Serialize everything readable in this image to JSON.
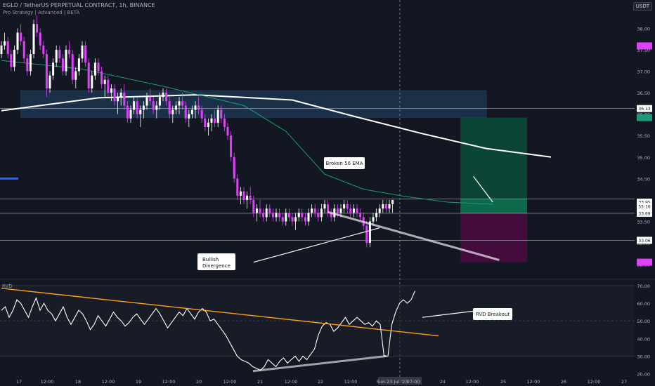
{
  "header": {
    "title": "EGLD / TetherUS PERPETUAL CONTRACT, 1h, BINANCE",
    "indicator": "Pro Strategy | Advanced | BETA"
  },
  "currency_badge": "USDT",
  "rvd_label": "RVD",
  "annotations": {
    "ema_break": "Broken 50 EMA",
    "divergence_line1": "Bullish",
    "divergence_line2": "Divergence",
    "rvd_breakout": "RVD Breakout"
  },
  "colors": {
    "background": "#131722",
    "bull_candle": "#ffffff",
    "bear_candle": "#e040fb",
    "ema_long": "#ffffff",
    "ema_50": "#1f9a78",
    "target_zone": "#0b4a38",
    "stop_zone": "#4a0a40",
    "supply_zone": "#1c3550",
    "trendline": "#ff9f1c",
    "oscillator": "#ffffff",
    "crosshair": "#9598a1"
  },
  "chart_data": [
    {
      "type": "candlestick",
      "title": "EGLD / TetherUS PERPETUAL CONTRACT, 1h, BINANCE",
      "y_ticks": [
        38.0,
        37.5,
        37.0,
        36.5,
        36.0,
        35.5,
        35.0,
        34.5,
        34.0,
        33.5,
        33.0,
        32.5
      ],
      "ylim": [
        32.2,
        38.3
      ],
      "x_ticks": [
        "17",
        "12:00",
        "18",
        "12:00",
        "19",
        "12:00",
        "20",
        "12:00",
        "21",
        "12:00",
        "22",
        "12:00",
        "Sun 23 Jul '23",
        "07:00",
        "24",
        "12:00",
        "25",
        "12:00",
        "26",
        "12:00",
        "27"
      ],
      "price_labels": [
        {
          "value": "37.59",
          "color": "#e040fb"
        },
        {
          "value": "36.13",
          "color": "#131722"
        },
        {
          "value": "35.92",
          "color": "#1f9a78"
        },
        {
          "value": "33.95",
          "color": "#131722"
        },
        {
          "value": "55:16",
          "color": "#131722"
        },
        {
          "value": "33.69",
          "color": "#131722"
        },
        {
          "value": "33.06",
          "color": "#131722"
        },
        {
          "value": "32.55",
          "color": "#e040fb"
        }
      ],
      "horizontal_levels": [
        36.13,
        34.02,
        33.06
      ],
      "supply_zone": {
        "top": 36.55,
        "bottom": 35.92,
        "start_index": 0,
        "end_index": 150
      },
      "trade_setup": {
        "entry": 33.69,
        "target": 35.92,
        "stop": 32.55,
        "start_index": 142,
        "end_index": 187
      },
      "ohlc": [
        [
          37.4,
          37.7,
          37.3,
          37.6
        ],
        [
          37.6,
          37.9,
          37.5,
          37.7
        ],
        [
          37.7,
          37.8,
          37.3,
          37.4
        ],
        [
          37.4,
          37.5,
          37.0,
          37.1
        ],
        [
          37.1,
          37.6,
          37.0,
          37.5
        ],
        [
          37.5,
          38.0,
          37.4,
          37.9
        ],
        [
          37.9,
          38.1,
          37.6,
          37.7
        ],
        [
          37.7,
          37.8,
          37.2,
          37.3
        ],
        [
          37.3,
          37.4,
          36.9,
          37.0
        ],
        [
          37.0,
          37.5,
          36.9,
          37.4
        ],
        [
          37.4,
          38.2,
          37.3,
          38.1
        ],
        [
          38.1,
          38.3,
          37.8,
          37.9
        ],
        [
          37.9,
          38.0,
          37.5,
          37.6
        ],
        [
          37.6,
          37.7,
          37.3,
          37.4
        ],
        [
          37.4,
          37.5,
          36.4,
          36.6
        ],
        [
          36.6,
          37.0,
          36.5,
          36.9
        ],
        [
          36.9,
          37.3,
          36.8,
          37.2
        ],
        [
          37.2,
          37.6,
          37.1,
          37.5
        ],
        [
          37.5,
          37.6,
          37.2,
          37.3
        ],
        [
          37.3,
          37.4,
          36.9,
          37.0
        ],
        [
          37.0,
          37.6,
          36.9,
          37.5
        ],
        [
          37.5,
          37.7,
          37.3,
          37.4
        ],
        [
          37.4,
          37.5,
          36.7,
          36.8
        ],
        [
          36.8,
          37.1,
          36.6,
          37.0
        ],
        [
          37.0,
          37.4,
          36.9,
          37.3
        ],
        [
          37.3,
          37.7,
          37.2,
          37.6
        ],
        [
          37.6,
          37.7,
          37.1,
          37.2
        ],
        [
          37.2,
          37.3,
          36.5,
          36.6
        ],
        [
          36.6,
          37.0,
          36.5,
          36.9
        ],
        [
          36.9,
          37.3,
          36.8,
          37.2
        ],
        [
          37.2,
          37.3,
          36.9,
          37.0
        ],
        [
          37.0,
          37.1,
          36.6,
          36.7
        ],
        [
          36.7,
          36.9,
          36.4,
          36.8
        ],
        [
          36.8,
          36.9,
          36.4,
          36.5
        ],
        [
          36.5,
          36.7,
          36.3,
          36.6
        ],
        [
          36.6,
          36.7,
          36.2,
          36.3
        ],
        [
          36.3,
          36.5,
          36.0,
          36.4
        ],
        [
          36.4,
          36.6,
          36.2,
          36.5
        ],
        [
          36.5,
          36.7,
          36.1,
          36.2
        ],
        [
          36.2,
          36.3,
          35.8,
          35.9
        ],
        [
          35.9,
          36.2,
          35.8,
          36.1
        ],
        [
          36.1,
          36.4,
          36.0,
          36.3
        ],
        [
          36.3,
          36.4,
          35.9,
          36.0
        ],
        [
          36.0,
          36.2,
          35.7,
          36.1
        ],
        [
          36.1,
          36.3,
          35.9,
          36.2
        ],
        [
          36.2,
          36.5,
          36.1,
          36.4
        ],
        [
          36.4,
          36.6,
          36.2,
          36.3
        ],
        [
          36.3,
          36.4,
          36.0,
          36.1
        ],
        [
          36.1,
          36.3,
          35.9,
          36.2
        ],
        [
          36.2,
          36.5,
          36.1,
          36.4
        ],
        [
          36.4,
          36.6,
          36.3,
          36.5
        ],
        [
          36.5,
          36.6,
          36.2,
          36.3
        ],
        [
          36.3,
          36.4,
          35.9,
          36.0
        ],
        [
          36.0,
          36.2,
          35.8,
          36.1
        ],
        [
          36.1,
          36.3,
          36.0,
          36.2
        ],
        [
          36.2,
          36.4,
          36.0,
          36.3
        ],
        [
          36.3,
          36.5,
          36.1,
          36.2
        ],
        [
          36.2,
          36.3,
          35.8,
          35.9
        ],
        [
          35.9,
          36.1,
          35.7,
          36.0
        ],
        [
          36.0,
          36.2,
          35.9,
          36.1
        ],
        [
          36.1,
          36.3,
          35.9,
          36.2
        ],
        [
          36.2,
          36.4,
          36.0,
          36.1
        ],
        [
          36.1,
          36.2,
          35.8,
          35.9
        ],
        [
          35.9,
          36.0,
          35.6,
          35.7
        ],
        [
          35.7,
          35.9,
          35.5,
          35.8
        ],
        [
          35.8,
          36.0,
          35.6,
          35.9
        ],
        [
          35.9,
          36.1,
          35.7,
          35.8
        ],
        [
          35.8,
          36.2,
          35.7,
          36.1
        ],
        [
          36.1,
          36.2,
          35.8,
          35.9
        ],
        [
          35.9,
          36.0,
          35.6,
          35.7
        ],
        [
          35.7,
          35.8,
          35.4,
          35.5
        ],
        [
          35.5,
          35.6,
          34.9,
          35.0
        ],
        [
          35.0,
          35.1,
          34.4,
          34.5
        ],
        [
          34.5,
          34.6,
          34.0,
          34.1
        ],
        [
          34.1,
          34.3,
          33.9,
          34.2
        ],
        [
          34.2,
          34.3,
          33.9,
          34.0
        ],
        [
          34.0,
          34.2,
          33.8,
          34.1
        ],
        [
          34.1,
          34.3,
          33.9,
          34.0
        ],
        [
          34.0,
          34.1,
          33.6,
          33.7
        ],
        [
          33.7,
          33.9,
          33.5,
          33.8
        ],
        [
          33.8,
          34.0,
          33.6,
          33.7
        ],
        [
          33.7,
          33.8,
          33.5,
          33.6
        ],
        [
          33.6,
          33.9,
          33.5,
          33.8
        ],
        [
          33.8,
          33.9,
          33.6,
          33.7
        ],
        [
          33.7,
          33.8,
          33.5,
          33.6
        ],
        [
          33.6,
          33.8,
          33.5,
          33.7
        ],
        [
          33.7,
          33.8,
          33.5,
          33.6
        ],
        [
          33.6,
          33.7,
          33.4,
          33.5
        ],
        [
          33.5,
          33.8,
          33.4,
          33.7
        ],
        [
          33.7,
          33.8,
          33.5,
          33.6
        ],
        [
          33.6,
          33.7,
          33.4,
          33.5
        ],
        [
          33.5,
          33.7,
          33.3,
          33.6
        ],
        [
          33.6,
          33.8,
          33.5,
          33.7
        ],
        [
          33.7,
          33.8,
          33.5,
          33.6
        ],
        [
          33.6,
          33.7,
          33.4,
          33.5
        ],
        [
          33.5,
          33.8,
          33.4,
          33.7
        ],
        [
          33.7,
          33.9,
          33.6,
          33.8
        ],
        [
          33.8,
          33.9,
          33.6,
          33.7
        ],
        [
          33.7,
          33.8,
          33.5,
          33.6
        ],
        [
          33.6,
          33.9,
          33.5,
          33.8
        ],
        [
          33.8,
          34.0,
          33.7,
          33.9
        ],
        [
          33.9,
          34.0,
          33.6,
          33.7
        ],
        [
          33.7,
          33.8,
          33.5,
          33.6
        ],
        [
          33.6,
          33.9,
          33.5,
          33.8
        ],
        [
          33.8,
          33.9,
          33.6,
          33.7
        ],
        [
          33.7,
          33.9,
          33.6,
          33.8
        ],
        [
          33.8,
          34.0,
          33.7,
          33.9
        ],
        [
          33.9,
          34.0,
          33.7,
          33.8
        ],
        [
          33.8,
          33.9,
          33.6,
          33.7
        ],
        [
          33.7,
          33.9,
          33.6,
          33.8
        ],
        [
          33.8,
          33.9,
          33.6,
          33.7
        ],
        [
          33.7,
          33.8,
          33.5,
          33.6
        ],
        [
          33.6,
          33.7,
          33.3,
          33.4
        ],
        [
          33.4,
          33.5,
          32.9,
          33.0
        ],
        [
          33.0,
          33.6,
          32.9,
          33.5
        ],
        [
          33.5,
          33.7,
          33.4,
          33.6
        ],
        [
          33.6,
          33.8,
          33.5,
          33.7
        ],
        [
          33.7,
          33.9,
          33.6,
          33.8
        ],
        [
          33.8,
          34.0,
          33.7,
          33.9
        ],
        [
          33.9,
          34.0,
          33.7,
          33.8
        ],
        [
          33.8,
          34.0,
          33.7,
          33.9
        ],
        [
          33.9,
          34.0,
          33.7,
          34.0
        ]
      ],
      "series": [
        {
          "type": "line",
          "color": "#ffffff",
          "points": [
            [
              0,
              36.08
            ],
            [
              30,
              36.38
            ],
            [
              60,
              36.45
            ],
            [
              90,
              36.33
            ],
            [
              110,
              35.93
            ],
            [
              130,
              35.55
            ],
            [
              150,
              35.2
            ],
            [
              170,
              35.0
            ]
          ]
        },
        {
          "type": "line",
          "color": "#1f9a78",
          "points": [
            [
              0,
              37.25
            ],
            [
              25,
              37.05
            ],
            [
              50,
              36.65
            ],
            [
              75,
              36.2
            ],
            [
              88,
              35.6
            ],
            [
              100,
              34.6
            ],
            [
              112,
              34.25
            ],
            [
              125,
              34.08
            ],
            [
              138,
              33.95
            ],
            [
              152,
              33.9
            ]
          ]
        }
      ],
      "annotation_lines": [
        {
          "from": [
            101,
            33.72
          ],
          "to": [
            154,
            32.6
          ]
        },
        {
          "from": [
            117,
            33.35
          ],
          "to": [
            78,
            32.55
          ]
        },
        {
          "from": [
            152,
            33.95
          ],
          "to": [
            146,
            34.55
          ]
        }
      ]
    },
    {
      "type": "line",
      "title": "RVD",
      "y_ticks": [
        70.0,
        60.0,
        50.0,
        40.0,
        30.0,
        20.0
      ],
      "ylim": [
        17,
        72
      ],
      "levels": [
        70,
        50,
        30
      ],
      "values": [
        56,
        58,
        52,
        56,
        62,
        60,
        56,
        52,
        58,
        63,
        56,
        60,
        56,
        54,
        50,
        54,
        58,
        52,
        48,
        52,
        56,
        54,
        50,
        45,
        48,
        53,
        50,
        47,
        51,
        55,
        52,
        50,
        47,
        49,
        52,
        54,
        51,
        48,
        51,
        54,
        57,
        54,
        50,
        46,
        49,
        52,
        55,
        53,
        57,
        54,
        51,
        55,
        57,
        55,
        50,
        51,
        48,
        45,
        42,
        38,
        34,
        30,
        28,
        27,
        26,
        24,
        23,
        22,
        24,
        28,
        26,
        24,
        27,
        29,
        26,
        28,
        30,
        27,
        30,
        28,
        31,
        34,
        42,
        47,
        49,
        48,
        44,
        46,
        49,
        52,
        48,
        50,
        52,
        50,
        48,
        49,
        47,
        50,
        48,
        30,
        30,
        48,
        55,
        60,
        62,
        60,
        62,
        67
      ],
      "trendline": {
        "from": [
          0,
          68.5
        ],
        "to": [
          150,
          41.5
        ]
      },
      "support_line": {
        "from": [
          85,
          21.5
        ],
        "to": [
          145,
          30.0
        ]
      }
    }
  ]
}
